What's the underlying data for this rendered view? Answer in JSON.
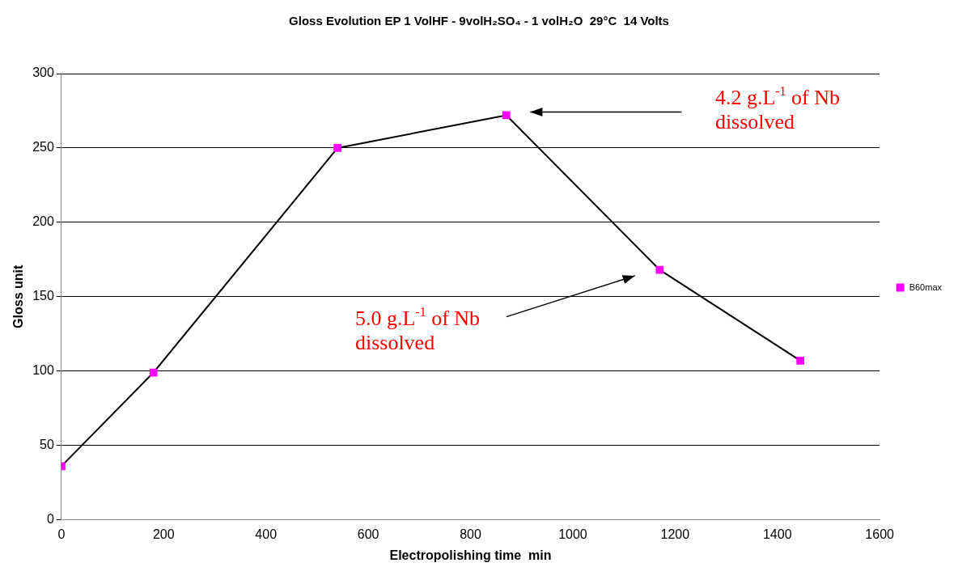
{
  "chart_data": {
    "type": "line",
    "title": "Gloss Evolution EP 1 VolHF - 9volH₂SO₄ - 1 volH₂O  29°C  14 Volts",
    "xlabel": "Electropolishing time  min",
    "ylabel": "Gloss unit",
    "x": [
      0,
      180,
      540,
      870,
      1170,
      1445
    ],
    "series": [
      {
        "name": "B60max",
        "color": "#ff00ff",
        "values": [
          36,
          99,
          250,
          272,
          168,
          107
        ]
      }
    ],
    "xlim": [
      0,
      1600
    ],
    "xticks": [
      0,
      200,
      400,
      600,
      800,
      1000,
      1200,
      1400,
      1600
    ],
    "ylim": [
      0,
      300
    ],
    "yticks": [
      0,
      50,
      100,
      150,
      200,
      250,
      300
    ],
    "grid": "y",
    "legend": "right",
    "marker": "square",
    "line_style": "solid",
    "annotations": [
      "4.2 g.L$^{-1}$ of Nb dissolved",
      "5.0 g.L$^{-1}$ of Nb dissolved"
    ]
  }
}
